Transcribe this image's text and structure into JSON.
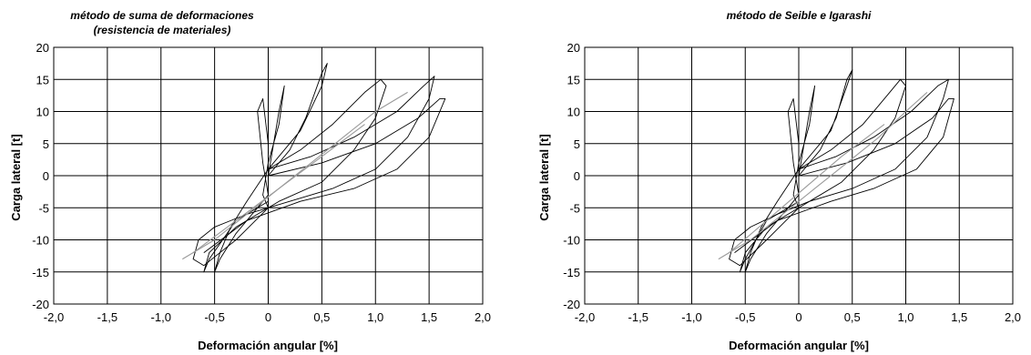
{
  "chart_data": [
    {
      "type": "line",
      "title": "método de suma de deformaciones",
      "subtitle": "(resistencia de materiales)",
      "xlabel": "Deformación angular [%]",
      "ylabel": "Carga lateral [t]",
      "xlim": [
        -2.0,
        2.0
      ],
      "ylim": [
        -20,
        20
      ],
      "xticks": [
        "-2,0",
        "-1,5",
        "-1,0",
        "-0,5",
        "0",
        "0,5",
        "1,0",
        "1,5",
        "2,0"
      ],
      "yticks": [
        "20",
        "15",
        "10",
        "5",
        "0",
        "-5",
        "-10",
        "-15",
        "-20"
      ],
      "grid": true,
      "series": [
        {
          "color": "#000000",
          "x": [
            0,
            0.05,
            0.1,
            0.15,
            0.1,
            0.0,
            -0.05,
            0.0,
            0.0,
            0.0,
            -0.05,
            -0.1,
            -0.05,
            0.0
          ],
          "y": [
            0,
            5,
            10,
            14,
            8,
            2,
            -3,
            -5,
            -7,
            5,
            12,
            10,
            2,
            -3
          ]
        },
        {
          "color": "#000000",
          "x": [
            0,
            0.2,
            0.35,
            0.5,
            0.55,
            0.5,
            0.3,
            0.0,
            -0.2,
            -0.35,
            -0.45,
            -0.5,
            -0.45,
            -0.3,
            -0.1,
            0.0
          ],
          "y": [
            0,
            4,
            9,
            16,
            17.5,
            14,
            7,
            1,
            -4,
            -8,
            -12,
            -15,
            -13,
            -9,
            -5,
            -3
          ]
        },
        {
          "color": "#000000",
          "x": [
            0,
            0.3,
            0.6,
            0.9,
            1.05,
            1.1,
            1.0,
            0.8,
            0.5,
            0.1,
            -0.3,
            -0.55,
            -0.6,
            -0.55,
            -0.3,
            0.0
          ],
          "y": [
            1,
            4,
            8,
            13,
            15,
            14,
            9,
            4,
            -1,
            -4,
            -8,
            -12,
            -15,
            -13,
            -7,
            -4
          ]
        },
        {
          "color": "#000000",
          "x": [
            0,
            0.4,
            0.8,
            1.2,
            1.45,
            1.55,
            1.5,
            1.3,
            1.0,
            0.6,
            0.2,
            -0.2,
            -0.5,
            -0.65,
            -0.7,
            -0.6,
            -0.3,
            0.0
          ],
          "y": [
            1,
            3,
            6,
            10,
            14,
            15.5,
            12,
            6,
            1,
            -2,
            -4,
            -6,
            -8,
            -10,
            -13,
            -14,
            -10,
            -5
          ]
        },
        {
          "color": "#000000",
          "x": [
            0,
            0.5,
            1.0,
            1.4,
            1.6,
            1.65,
            1.5,
            1.2,
            0.8,
            0.3,
            -0.2,
            -0.6
          ],
          "y": [
            0,
            2,
            5,
            9,
            12,
            12,
            6,
            1,
            -2,
            -4,
            -7,
            -12
          ]
        },
        {
          "color": "#9a9a9a",
          "x": [
            -0.8,
            -0.5,
            -0.2,
            0.1,
            0.4,
            0.7,
            1.0,
            1.3
          ],
          "y": [
            -13,
            -10,
            -6,
            -2,
            2,
            6,
            10,
            13
          ]
        },
        {
          "color": "#9a9a9a",
          "x": [
            -0.7,
            -0.3,
            0.1,
            0.5,
            0.9
          ],
          "y": [
            -12,
            -7,
            -2,
            3,
            8
          ]
        }
      ]
    },
    {
      "type": "line",
      "title": "método de Seible e Igarashi",
      "xlabel": "Deformación angular [%]",
      "ylabel": "Carga lateral [t]",
      "xlim": [
        -2.0,
        2.0
      ],
      "ylim": [
        -20,
        20
      ],
      "xticks": [
        "-2,0",
        "-1,5",
        "-1,0",
        "-0,5",
        "0",
        "0,5",
        "1,0",
        "1,5",
        "2,0"
      ],
      "yticks": [
        "20",
        "15",
        "10",
        "5",
        "0",
        "-5",
        "-10",
        "-15",
        "-20"
      ],
      "grid": true,
      "series": [
        {
          "color": "#000000",
          "x": [
            0,
            0.05,
            0.1,
            0.15,
            0.1,
            0.0,
            -0.05,
            0.0,
            0.0,
            0.0,
            -0.05,
            -0.1,
            -0.05,
            0.0
          ],
          "y": [
            0,
            5,
            10,
            14,
            8,
            2,
            -3,
            -5,
            -7,
            5,
            12,
            10,
            2,
            -3
          ]
        },
        {
          "color": "#000000",
          "x": [
            0,
            0.2,
            0.35,
            0.45,
            0.5,
            0.45,
            0.3,
            0.0,
            -0.2,
            -0.35,
            -0.45,
            -0.5,
            -0.45,
            -0.3,
            -0.1,
            0.0
          ],
          "y": [
            0,
            4,
            9,
            15,
            16.5,
            14,
            7,
            1,
            -4,
            -8,
            -12,
            -15,
            -13,
            -9,
            -5,
            -3
          ]
        },
        {
          "color": "#000000",
          "x": [
            0,
            0.3,
            0.6,
            0.85,
            0.95,
            1.0,
            0.9,
            0.7,
            0.4,
            0.1,
            -0.3,
            -0.5,
            -0.55,
            -0.5,
            -0.3,
            0.0
          ],
          "y": [
            1,
            4,
            8,
            13,
            15,
            14,
            9,
            4,
            -1,
            -4,
            -8,
            -12,
            -15,
            -13,
            -7,
            -4
          ]
        },
        {
          "color": "#000000",
          "x": [
            0,
            0.35,
            0.7,
            1.05,
            1.3,
            1.4,
            1.35,
            1.2,
            0.9,
            0.5,
            0.1,
            -0.2,
            -0.45,
            -0.6,
            -0.65,
            -0.55,
            -0.3,
            0.0
          ],
          "y": [
            1,
            3,
            6,
            10,
            14,
            15,
            12,
            6,
            1,
            -2,
            -4,
            -6,
            -8,
            -10,
            -13,
            -14,
            -10,
            -5
          ]
        },
        {
          "color": "#000000",
          "x": [
            0,
            0.45,
            0.9,
            1.25,
            1.4,
            1.45,
            1.35,
            1.1,
            0.7,
            0.3,
            -0.2,
            -0.6
          ],
          "y": [
            0,
            2,
            5,
            9,
            12,
            12,
            6,
            1,
            -2,
            -4,
            -7,
            -12
          ]
        },
        {
          "color": "#9a9a9a",
          "x": [
            -0.75,
            -0.45,
            -0.15,
            0.15,
            0.45,
            0.75,
            1.0,
            1.2
          ],
          "y": [
            -13,
            -10,
            -6,
            -2,
            2,
            6,
            10,
            13
          ]
        },
        {
          "color": "#9a9a9a",
          "x": [
            -0.65,
            -0.3,
            0.05,
            0.4,
            0.8
          ],
          "y": [
            -12,
            -7,
            -2,
            3,
            8
          ]
        }
      ]
    }
  ]
}
